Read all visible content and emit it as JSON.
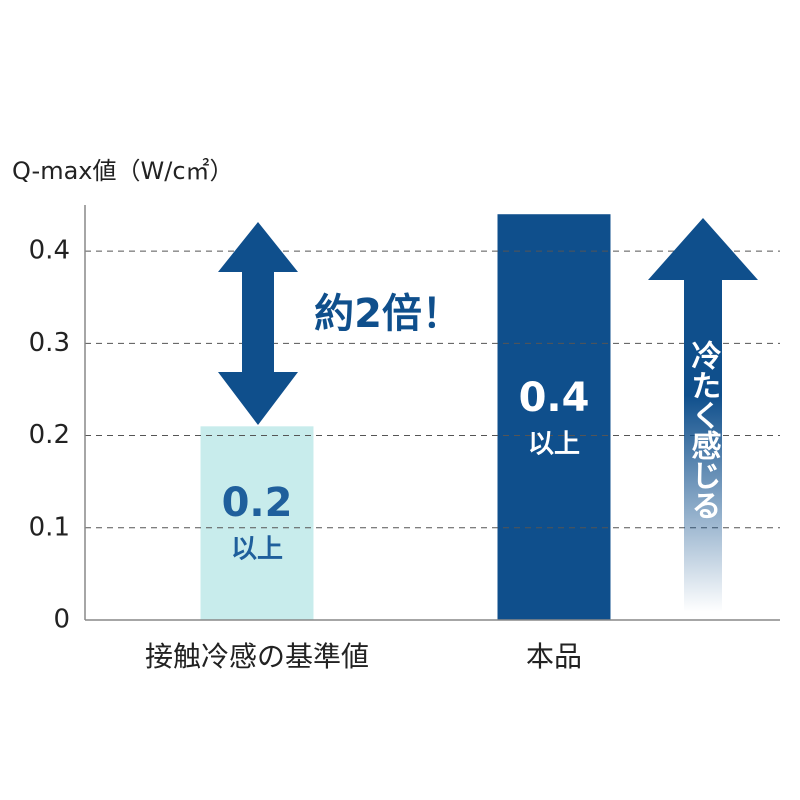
{
  "chart_data": {
    "type": "bar",
    "y_axis_label": "Q-max値（W/c㎡）",
    "categories": [
      "接触冷感の基準値",
      "本品"
    ],
    "values": [
      0.21,
      0.44
    ],
    "value_labels": [
      "0.2",
      "0.4"
    ],
    "colors": [
      "#c8ecec",
      "#0f4f8c"
    ],
    "ylim": [
      0,
      0.45
    ],
    "yticks": [
      0,
      0.1,
      0.2,
      0.3,
      0.4
    ],
    "grid": true,
    "annotations": {
      "at_least": "以上",
      "ratio": "約2倍！",
      "feeling": "冷たく感じる"
    }
  }
}
